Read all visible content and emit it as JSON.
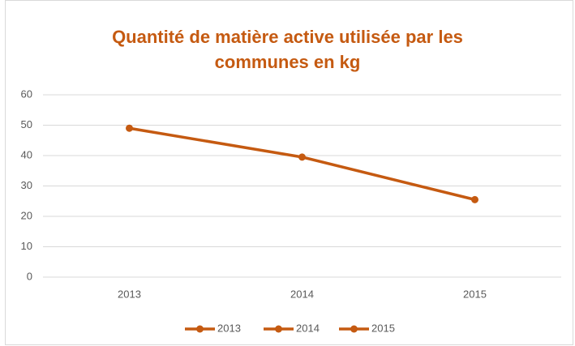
{
  "chart_data": {
    "type": "line",
    "title": "Quantité de matière active utilisée par les communes en kg",
    "categories": [
      "2013",
      "2014",
      "2015"
    ],
    "series": [
      {
        "name": "2013",
        "color": "#c55a11",
        "values": [
          49,
          39.5,
          25.5
        ]
      }
    ],
    "ylim": [
      0,
      60
    ],
    "yticks": [
      0,
      10,
      20,
      30,
      40,
      50,
      60
    ],
    "grid": true
  }
}
